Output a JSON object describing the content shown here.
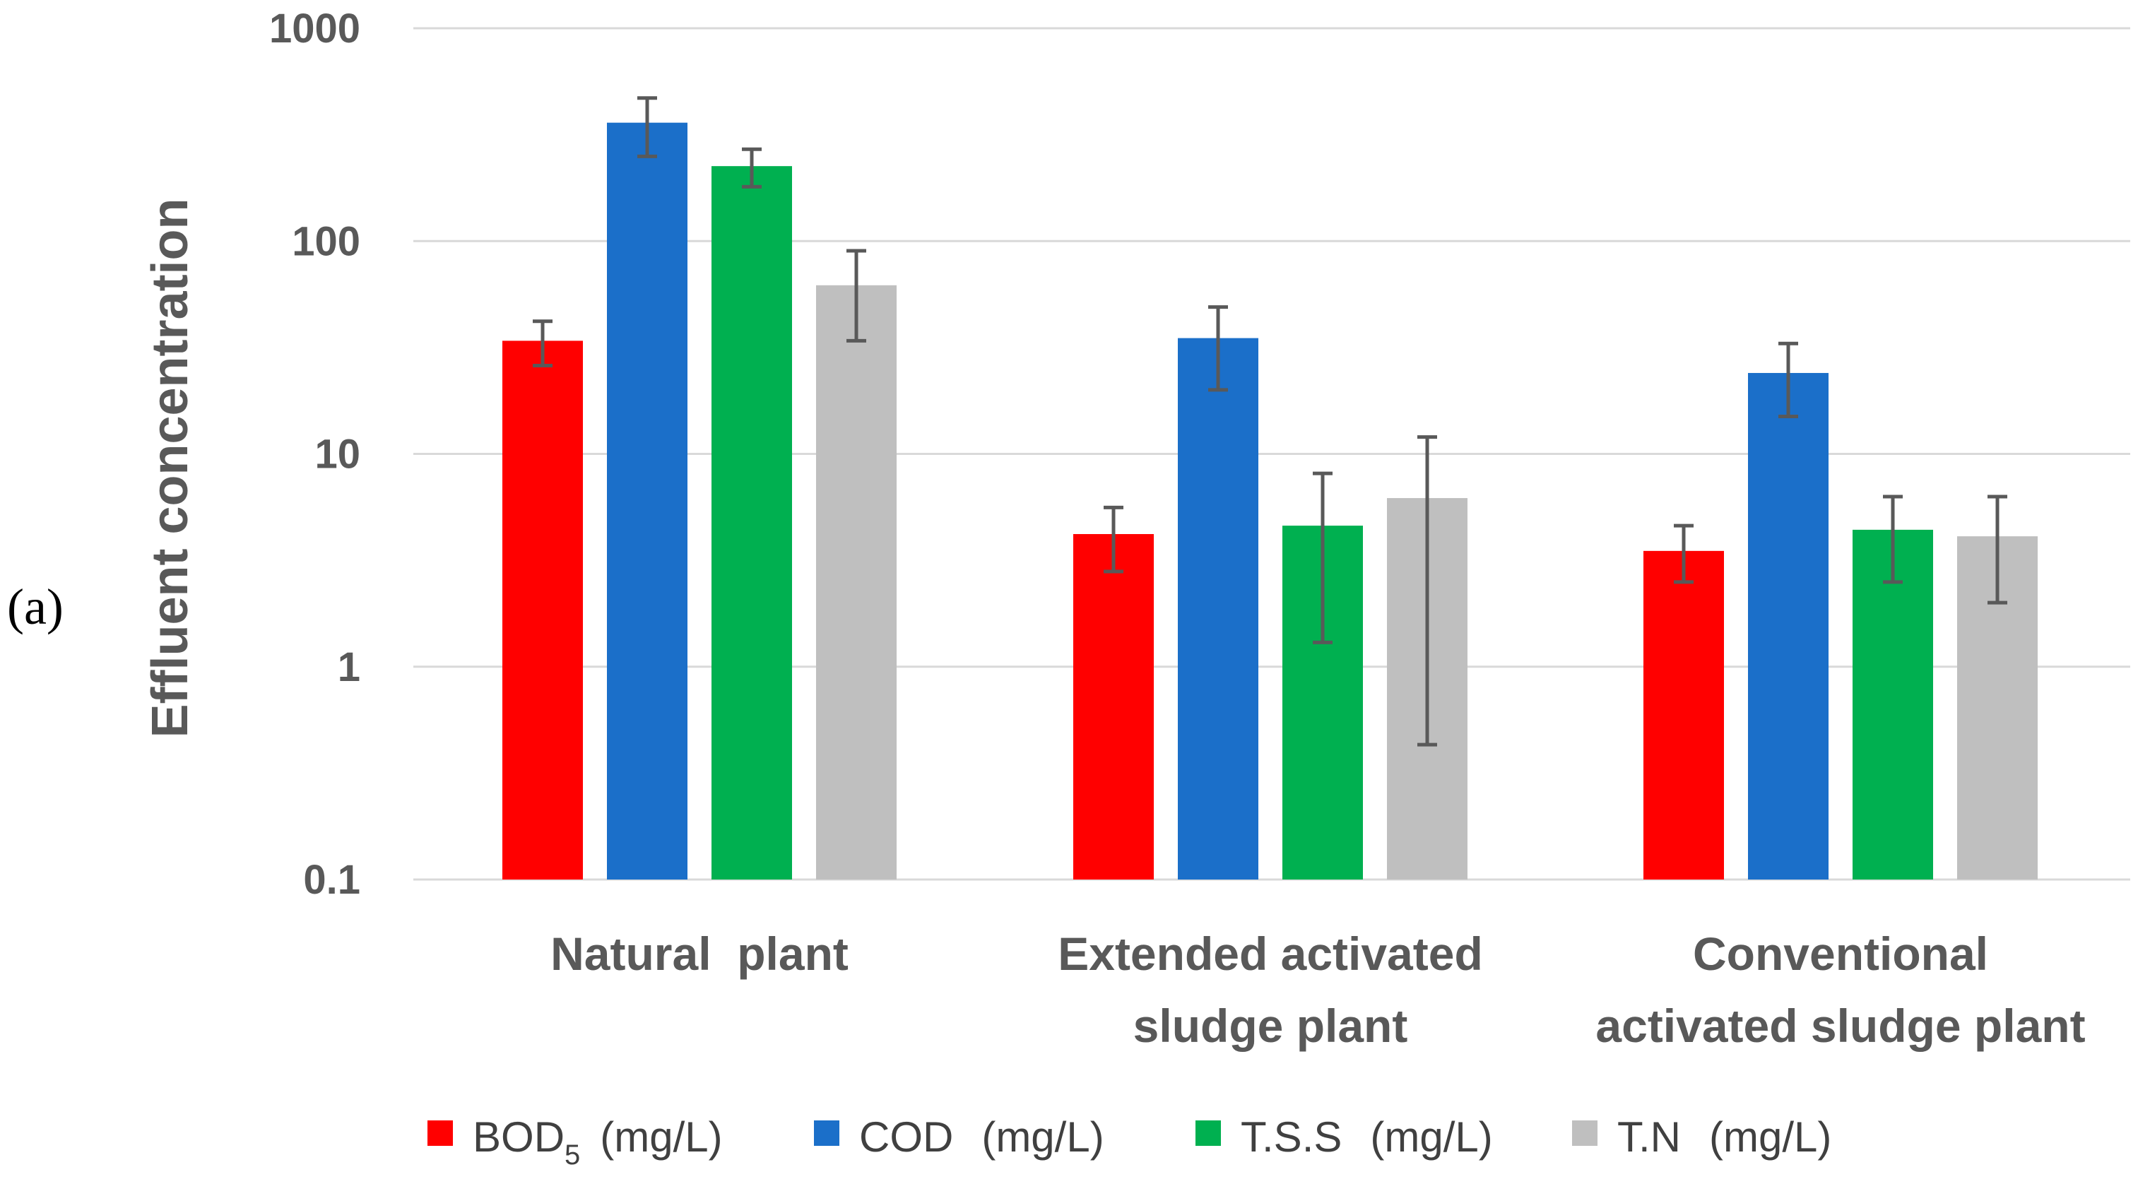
{
  "panel_label": "(a)",
  "chart_data": {
    "type": "bar",
    "scale": "log",
    "title": "",
    "xlabel": "",
    "ylabel": "Effluent concentration",
    "ylim": [
      0.1,
      1000
    ],
    "yticks": [
      {
        "value": 0.1,
        "label": "0.1"
      },
      {
        "value": 1,
        "label": "1"
      },
      {
        "value": 10,
        "label": "10"
      },
      {
        "value": 100,
        "label": "100"
      },
      {
        "value": 1000,
        "label": "1000"
      }
    ],
    "grid": true,
    "legend_position": "bottom",
    "categories": [
      {
        "lines": [
          "Natural  plant"
        ]
      },
      {
        "lines": [
          "Extended activated",
          "sludge plant"
        ]
      },
      {
        "lines": [
          "Conventional",
          "activated sludge plant"
        ]
      }
    ],
    "series": [
      {
        "name": "BOD",
        "subscript": "5",
        "unit": "(mg/L)",
        "color": "#ff0000",
        "values": [
          34,
          4.2,
          3.5
        ],
        "err_low": [
          26,
          2.8,
          2.5
        ],
        "err_high": [
          42,
          5.6,
          4.6
        ]
      },
      {
        "name": "COD",
        "subscript": "",
        "unit": "(mg/L)",
        "color": "#1b6fc9",
        "values": [
          360,
          35,
          24
        ],
        "err_low": [
          250,
          20,
          15
        ],
        "err_high": [
          470,
          49,
          33
        ]
      },
      {
        "name": "T.S.S",
        "subscript": "",
        "unit": "(mg/L)",
        "color": "#00b050",
        "values": [
          225,
          4.6,
          4.4
        ],
        "err_low": [
          180,
          1.3,
          2.5
        ],
        "err_high": [
          270,
          8.1,
          6.3
        ]
      },
      {
        "name": "T.N",
        "subscript": "",
        "unit": "(mg/L)",
        "color": "#bfbfbf",
        "values": [
          62,
          6.2,
          4.1
        ],
        "err_low": [
          34,
          0.43,
          2.0
        ],
        "err_high": [
          90,
          12,
          6.3
        ]
      }
    ]
  }
}
